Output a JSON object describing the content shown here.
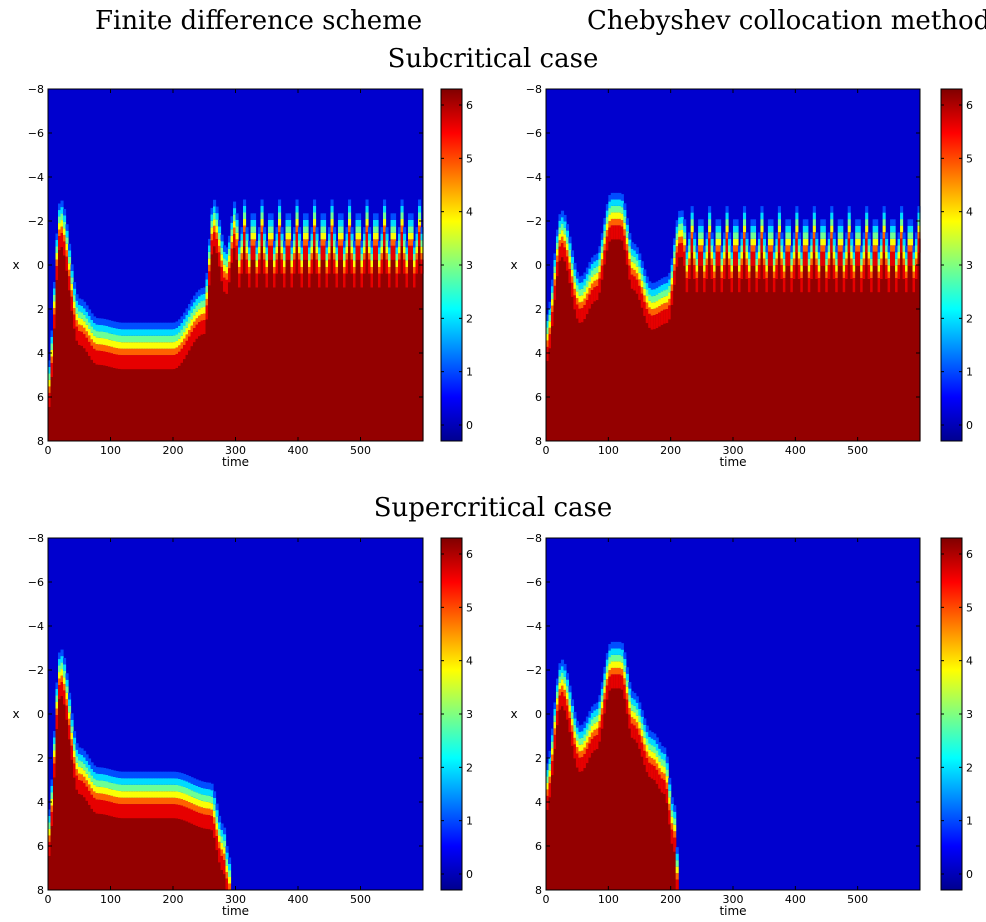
{
  "header": {
    "col_left": "Finite difference scheme",
    "col_right": "Chebyshev collocation method",
    "row_top": "Subcritical case",
    "row_bottom": "Supercritical case"
  },
  "colormap": {
    "name": "jet",
    "low": "#00008f",
    "high": "#800000"
  },
  "chart_data": [
    {
      "type": "heatmap",
      "panel": "top-left",
      "method": "Finite difference scheme",
      "case": "Subcritical case",
      "xlabel": "time",
      "ylabel": "x",
      "xlim": [
        0,
        600
      ],
      "ylim": [
        -8,
        8
      ],
      "y_inverted": true,
      "xticks": [
        0,
        100,
        200,
        300,
        400,
        500
      ],
      "yticks": [
        -8,
        -6,
        -4,
        -2,
        0,
        2,
        4,
        6,
        8
      ],
      "clim": [
        -0.3,
        6.3
      ],
      "cticks": [
        0,
        1,
        2,
        3,
        4,
        5,
        6
      ],
      "front": {
        "t": [
          0,
          20,
          50,
          80,
          120,
          200,
          250,
          265,
          285,
          300,
          600
        ],
        "x": [
          6.0,
          -1.5,
          3.0,
          3.9,
          4.1,
          4.1,
          2.5,
          -1.5,
          0.7,
          -1.5,
          -1.5
        ]
      },
      "oscillation": {
        "start": 300,
        "end": 600,
        "period": 14,
        "crest": -1.5,
        "trough": 0.7
      }
    },
    {
      "type": "heatmap",
      "panel": "top-right",
      "method": "Chebyshev collocation method",
      "case": "Subcritical case",
      "xlabel": "time",
      "ylabel": "x",
      "xlim": [
        0,
        600
      ],
      "ylim": [
        -8,
        8
      ],
      "y_inverted": true,
      "xticks": [
        0,
        100,
        200,
        300,
        400,
        500
      ],
      "yticks": [
        -8,
        -6,
        -4,
        -2,
        0,
        2,
        4,
        6,
        8
      ],
      "clim": [
        -0.3,
        6.3
      ],
      "cticks": [
        0,
        1,
        2,
        3,
        4,
        5,
        6
      ],
      "front": {
        "t": [
          0,
          25,
          55,
          80,
          105,
          120,
          140,
          170,
          195,
          215,
          600
        ],
        "x": [
          3.8,
          -1.0,
          2.0,
          1.0,
          -1.8,
          -1.8,
          0.5,
          2.3,
          2.0,
          -1.0,
          -1.0
        ]
      },
      "oscillation": {
        "start": 220,
        "end": 600,
        "period": 14,
        "crest": -1.2,
        "trough": 0.9
      }
    },
    {
      "type": "heatmap",
      "panel": "bottom-left",
      "method": "Finite difference scheme",
      "case": "Supercritical case",
      "xlabel": "time",
      "ylabel": "x",
      "xlim": [
        0,
        600
      ],
      "ylim": [
        -8,
        8
      ],
      "y_inverted": true,
      "xticks": [
        0,
        100,
        200,
        300,
        400,
        500
      ],
      "yticks": [
        -8,
        -6,
        -4,
        -2,
        0,
        2,
        4,
        6,
        8
      ],
      "clim": [
        -0.3,
        6.3
      ],
      "cticks": [
        0,
        1,
        2,
        3,
        4,
        5,
        6
      ],
      "front": {
        "t": [
          0,
          20,
          50,
          80,
          120,
          200,
          260,
          280,
          290,
          600
        ],
        "x": [
          6.0,
          -1.5,
          3.0,
          3.9,
          4.1,
          4.1,
          4.6,
          6.5,
          8.0,
          8.0
        ]
      },
      "collapse_time": 290
    },
    {
      "type": "heatmap",
      "panel": "bottom-right",
      "method": "Chebyshev collocation method",
      "case": "Supercritical case",
      "xlabel": "time",
      "ylabel": "x",
      "xlim": [
        0,
        600
      ],
      "ylim": [
        -8,
        8
      ],
      "y_inverted": true,
      "xticks": [
        0,
        100,
        200,
        300,
        400,
        500
      ],
      "yticks": [
        -8,
        -6,
        -4,
        -2,
        0,
        2,
        4,
        6,
        8
      ],
      "clim": [
        -0.3,
        6.3
      ],
      "cticks": [
        0,
        1,
        2,
        3,
        4,
        5,
        6
      ],
      "front": {
        "t": [
          0,
          25,
          55,
          80,
          105,
          120,
          140,
          170,
          190,
          205,
          212,
          600
        ],
        "x": [
          3.8,
          -1.0,
          2.0,
          1.0,
          -1.8,
          -1.8,
          0.5,
          2.3,
          3.0,
          5.5,
          8.0,
          8.0
        ]
      },
      "collapse_time": 212
    }
  ]
}
